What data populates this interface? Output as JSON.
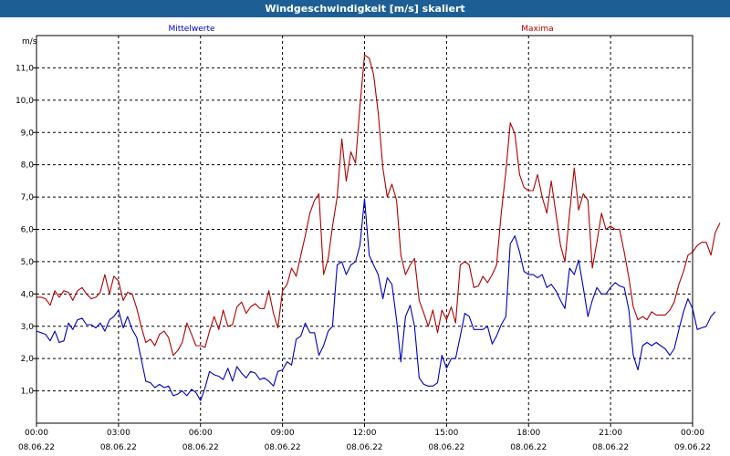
{
  "window": {
    "title": "Windgeschwindigkeit [m/s] skaliert"
  },
  "chart_data": {
    "type": "line",
    "title": "Windgeschwindigkeit [m/s] skaliert",
    "ylabel": "m/s",
    "ylim": [
      0,
      12
    ],
    "xlim": [
      0,
      24
    ],
    "yticks": [
      1.0,
      2.0,
      3.0,
      4.0,
      5.0,
      6.0,
      7.0,
      8.0,
      9.0,
      10.0,
      11.0
    ],
    "ytick_labels": [
      "1,0",
      "2,0",
      "3,0",
      "4,0",
      "5,0",
      "6,0",
      "7,0",
      "8,0",
      "9,0",
      "10,0",
      "11,0"
    ],
    "xticks": [
      {
        "x": 0,
        "time": "00:00",
        "date": "08.06.22"
      },
      {
        "x": 3,
        "time": "03:00",
        "date": "08.06.22"
      },
      {
        "x": 6,
        "time": "06:00",
        "date": "08.06.22"
      },
      {
        "x": 9,
        "time": "09:00",
        "date": "08.06.22"
      },
      {
        "x": 12,
        "time": "12:00",
        "date": "08.06.22"
      },
      {
        "x": 15,
        "time": "15:00",
        "date": "08.06.22"
      },
      {
        "x": 18,
        "time": "18:00",
        "date": "08.06.22"
      },
      {
        "x": 21,
        "time": "21:00",
        "date": "08.06.22"
      },
      {
        "x": 24,
        "time": "00:00",
        "date": "09.06.22"
      }
    ],
    "grid": true,
    "series": [
      {
        "name": "Mittelwerte",
        "color": "#0000c0",
        "points": [
          [
            0,
            2.85
          ],
          [
            0.17,
            2.8
          ],
          [
            0.33,
            2.75
          ],
          [
            0.5,
            2.55
          ],
          [
            0.67,
            2.85
          ],
          [
            0.83,
            2.5
          ],
          [
            1,
            2.55
          ],
          [
            1.17,
            3.1
          ],
          [
            1.33,
            2.9
          ],
          [
            1.5,
            3.2
          ],
          [
            1.67,
            3.25
          ],
          [
            1.83,
            3.05
          ],
          [
            2,
            3.05
          ],
          [
            2.17,
            2.95
          ],
          [
            2.33,
            3.1
          ],
          [
            2.5,
            2.85
          ],
          [
            2.67,
            3.2
          ],
          [
            2.83,
            3.3
          ],
          [
            3,
            3.5
          ],
          [
            3.17,
            2.95
          ],
          [
            3.33,
            3.3
          ],
          [
            3.5,
            2.9
          ],
          [
            3.67,
            2.65
          ],
          [
            3.83,
            2.0
          ],
          [
            4,
            1.3
          ],
          [
            4.17,
            1.25
          ],
          [
            4.33,
            1.1
          ],
          [
            4.5,
            1.2
          ],
          [
            4.67,
            1.1
          ],
          [
            4.83,
            1.15
          ],
          [
            5,
            0.85
          ],
          [
            5.17,
            0.9
          ],
          [
            5.33,
            1.0
          ],
          [
            5.5,
            0.85
          ],
          [
            5.67,
            1.05
          ],
          [
            5.83,
            0.95
          ],
          [
            6,
            0.7
          ],
          [
            6.17,
            1.1
          ],
          [
            6.33,
            1.6
          ],
          [
            6.5,
            1.5
          ],
          [
            6.67,
            1.45
          ],
          [
            6.83,
            1.35
          ],
          [
            7,
            1.7
          ],
          [
            7.17,
            1.3
          ],
          [
            7.33,
            1.75
          ],
          [
            7.5,
            1.55
          ],
          [
            7.67,
            1.4
          ],
          [
            7.83,
            1.6
          ],
          [
            8,
            1.55
          ],
          [
            8.17,
            1.35
          ],
          [
            8.33,
            1.4
          ],
          [
            8.5,
            1.3
          ],
          [
            8.67,
            1.15
          ],
          [
            8.83,
            1.6
          ],
          [
            9,
            1.65
          ],
          [
            9.17,
            1.9
          ],
          [
            9.33,
            1.8
          ],
          [
            9.5,
            2.6
          ],
          [
            9.67,
            2.7
          ],
          [
            9.83,
            3.1
          ],
          [
            10,
            2.8
          ],
          [
            10.17,
            2.8
          ],
          [
            10.33,
            2.1
          ],
          [
            10.5,
            2.4
          ],
          [
            10.67,
            2.85
          ],
          [
            10.83,
            3.0
          ],
          [
            11,
            4.9
          ],
          [
            11.17,
            5.0
          ],
          [
            11.33,
            4.6
          ],
          [
            11.5,
            4.9
          ],
          [
            11.67,
            5.0
          ],
          [
            11.83,
            5.5
          ],
          [
            12,
            6.95
          ],
          [
            12.17,
            5.2
          ],
          [
            12.33,
            4.9
          ],
          [
            12.5,
            4.6
          ],
          [
            12.67,
            3.85
          ],
          [
            12.83,
            4.5
          ],
          [
            13,
            4.3
          ],
          [
            13.17,
            3.2
          ],
          [
            13.33,
            1.9
          ],
          [
            13.5,
            3.3
          ],
          [
            13.67,
            3.65
          ],
          [
            13.83,
            3.0
          ],
          [
            14,
            1.4
          ],
          [
            14.17,
            1.2
          ],
          [
            14.33,
            1.15
          ],
          [
            14.5,
            1.15
          ],
          [
            14.67,
            1.25
          ],
          [
            14.83,
            2.1
          ],
          [
            15,
            1.7
          ],
          [
            15.17,
            2.0
          ],
          [
            15.33,
            2.0
          ],
          [
            15.5,
            2.7
          ],
          [
            15.67,
            3.4
          ],
          [
            15.83,
            3.3
          ],
          [
            16,
            2.9
          ],
          [
            16.17,
            2.9
          ],
          [
            16.33,
            2.9
          ],
          [
            16.5,
            3.0
          ],
          [
            16.67,
            2.45
          ],
          [
            16.83,
            2.7
          ],
          [
            17,
            3.05
          ],
          [
            17.17,
            3.3
          ],
          [
            17.33,
            5.55
          ],
          [
            17.5,
            5.8
          ],
          [
            17.67,
            5.3
          ],
          [
            17.83,
            4.7
          ],
          [
            18,
            4.6
          ],
          [
            18.17,
            4.6
          ],
          [
            18.33,
            4.5
          ],
          [
            18.5,
            4.6
          ],
          [
            18.67,
            4.2
          ],
          [
            18.83,
            4.3
          ],
          [
            19,
            4.1
          ],
          [
            19.17,
            3.8
          ],
          [
            19.33,
            3.55
          ],
          [
            19.5,
            4.8
          ],
          [
            19.67,
            4.6
          ],
          [
            19.83,
            5.05
          ],
          [
            20,
            4.2
          ],
          [
            20.17,
            3.3
          ],
          [
            20.33,
            3.8
          ],
          [
            20.5,
            4.2
          ],
          [
            20.67,
            4.0
          ],
          [
            20.83,
            4.0
          ],
          [
            21,
            4.2
          ],
          [
            21.17,
            4.35
          ],
          [
            21.33,
            4.25
          ],
          [
            21.5,
            4.2
          ],
          [
            21.67,
            3.5
          ],
          [
            21.83,
            2.1
          ],
          [
            22,
            1.65
          ],
          [
            22.17,
            2.4
          ],
          [
            22.33,
            2.5
          ],
          [
            22.5,
            2.4
          ],
          [
            22.67,
            2.5
          ],
          [
            22.83,
            2.4
          ],
          [
            23,
            2.3
          ],
          [
            23.17,
            2.1
          ],
          [
            23.33,
            2.3
          ],
          [
            23.5,
            2.9
          ],
          [
            23.67,
            3.45
          ],
          [
            23.83,
            3.85
          ],
          [
            24,
            3.55
          ],
          [
            24.17,
            2.9
          ],
          [
            24.33,
            2.95
          ],
          [
            24.5,
            3.0
          ],
          [
            24.67,
            3.3
          ],
          [
            24.83,
            3.45
          ]
        ]
      },
      {
        "name": "Maxima",
        "color": "#b00000",
        "points": [
          [
            0,
            3.9
          ],
          [
            0.17,
            3.9
          ],
          [
            0.33,
            3.85
          ],
          [
            0.5,
            3.65
          ],
          [
            0.67,
            4.1
          ],
          [
            0.83,
            3.9
          ],
          [
            1,
            4.1
          ],
          [
            1.17,
            4.05
          ],
          [
            1.33,
            3.8
          ],
          [
            1.5,
            4.1
          ],
          [
            1.67,
            4.2
          ],
          [
            1.83,
            4.0
          ],
          [
            2,
            3.85
          ],
          [
            2.17,
            3.9
          ],
          [
            2.33,
            4.05
          ],
          [
            2.5,
            4.6
          ],
          [
            2.67,
            4.0
          ],
          [
            2.83,
            4.55
          ],
          [
            3,
            4.4
          ],
          [
            3.17,
            3.8
          ],
          [
            3.33,
            4.05
          ],
          [
            3.5,
            4.0
          ],
          [
            3.67,
            3.55
          ],
          [
            3.83,
            3.0
          ],
          [
            4,
            2.5
          ],
          [
            4.17,
            2.6
          ],
          [
            4.33,
            2.4
          ],
          [
            4.5,
            2.75
          ],
          [
            4.67,
            2.85
          ],
          [
            4.83,
            2.65
          ],
          [
            5,
            2.1
          ],
          [
            5.17,
            2.25
          ],
          [
            5.33,
            2.5
          ],
          [
            5.5,
            3.1
          ],
          [
            5.67,
            2.75
          ],
          [
            5.83,
            2.4
          ],
          [
            6,
            2.4
          ],
          [
            6.17,
            2.35
          ],
          [
            6.33,
            2.85
          ],
          [
            6.5,
            3.3
          ],
          [
            6.67,
            2.9
          ],
          [
            6.83,
            3.5
          ],
          [
            7,
            3.0
          ],
          [
            7.17,
            3.05
          ],
          [
            7.33,
            3.6
          ],
          [
            7.5,
            3.75
          ],
          [
            7.67,
            3.4
          ],
          [
            7.83,
            3.6
          ],
          [
            8,
            3.7
          ],
          [
            8.17,
            3.55
          ],
          [
            8.33,
            3.55
          ],
          [
            8.5,
            4.1
          ],
          [
            8.67,
            3.4
          ],
          [
            8.83,
            2.95
          ],
          [
            9,
            4.1
          ],
          [
            9.17,
            4.3
          ],
          [
            9.33,
            4.8
          ],
          [
            9.5,
            4.55
          ],
          [
            9.67,
            5.2
          ],
          [
            9.83,
            5.8
          ],
          [
            10,
            6.5
          ],
          [
            10.17,
            6.9
          ],
          [
            10.33,
            7.1
          ],
          [
            10.5,
            4.6
          ],
          [
            10.67,
            5.1
          ],
          [
            10.83,
            6.1
          ],
          [
            11,
            7.0
          ],
          [
            11.17,
            8.8
          ],
          [
            11.33,
            7.5
          ],
          [
            11.5,
            8.4
          ],
          [
            11.67,
            8.05
          ],
          [
            11.83,
            9.8
          ],
          [
            12,
            11.4
          ],
          [
            12.17,
            11.3
          ],
          [
            12.33,
            10.8
          ],
          [
            12.5,
            9.6
          ],
          [
            12.67,
            7.9
          ],
          [
            12.83,
            7.0
          ],
          [
            13,
            7.4
          ],
          [
            13.17,
            6.9
          ],
          [
            13.33,
            5.2
          ],
          [
            13.5,
            4.6
          ],
          [
            13.67,
            4.9
          ],
          [
            13.83,
            5.1
          ],
          [
            14,
            3.8
          ],
          [
            14.17,
            3.4
          ],
          [
            14.33,
            3.0
          ],
          [
            14.5,
            3.5
          ],
          [
            14.67,
            2.8
          ],
          [
            14.83,
            3.5
          ],
          [
            15,
            3.2
          ],
          [
            15.17,
            3.6
          ],
          [
            15.33,
            3.1
          ],
          [
            15.5,
            4.9
          ],
          [
            15.67,
            5.0
          ],
          [
            15.83,
            4.9
          ],
          [
            16,
            4.2
          ],
          [
            16.17,
            4.25
          ],
          [
            16.33,
            4.55
          ],
          [
            16.5,
            4.35
          ],
          [
            16.67,
            4.6
          ],
          [
            16.83,
            4.9
          ],
          [
            17,
            6.5
          ],
          [
            17.17,
            7.8
          ],
          [
            17.33,
            9.3
          ],
          [
            17.5,
            8.95
          ],
          [
            17.67,
            7.7
          ],
          [
            17.83,
            7.3
          ],
          [
            18,
            7.2
          ],
          [
            18.17,
            7.2
          ],
          [
            18.33,
            7.7
          ],
          [
            18.5,
            7.0
          ],
          [
            18.67,
            6.5
          ],
          [
            18.83,
            7.5
          ],
          [
            19,
            6.5
          ],
          [
            19.17,
            5.5
          ],
          [
            19.33,
            5.0
          ],
          [
            19.5,
            6.5
          ],
          [
            19.67,
            7.9
          ],
          [
            19.83,
            6.6
          ],
          [
            20,
            7.1
          ],
          [
            20.17,
            6.9
          ],
          [
            20.33,
            4.8
          ],
          [
            20.5,
            5.6
          ],
          [
            20.67,
            6.5
          ],
          [
            20.83,
            6.0
          ],
          [
            21,
            6.1
          ],
          [
            21.17,
            6.0
          ],
          [
            21.33,
            6.0
          ],
          [
            21.5,
            5.3
          ],
          [
            21.67,
            4.5
          ],
          [
            21.83,
            3.6
          ],
          [
            22,
            3.2
          ],
          [
            22.17,
            3.3
          ],
          [
            22.33,
            3.2
          ],
          [
            22.5,
            3.45
          ],
          [
            22.67,
            3.35
          ],
          [
            22.83,
            3.35
          ],
          [
            23,
            3.35
          ],
          [
            23.17,
            3.5
          ],
          [
            23.33,
            3.75
          ],
          [
            23.5,
            4.3
          ],
          [
            23.67,
            4.7
          ],
          [
            23.83,
            5.2
          ],
          [
            24,
            5.3
          ],
          [
            24.17,
            5.5
          ],
          [
            24.33,
            5.6
          ],
          [
            24.5,
            5.6
          ],
          [
            24.67,
            5.2
          ],
          [
            24.83,
            5.9
          ],
          [
            25,
            6.2
          ]
        ]
      }
    ]
  }
}
